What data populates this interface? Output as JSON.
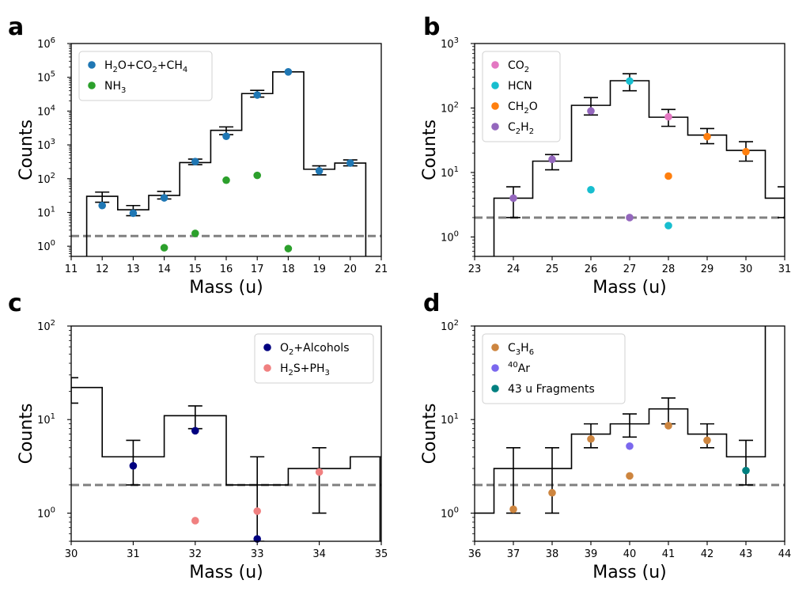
{
  "colors": {
    "step_line": "#000000",
    "threshold_line": "#808080",
    "h2o_co2_ch4": "#1f77b4",
    "nh3": "#2ca02c",
    "co2": "#e377c2",
    "hcn": "#17becf",
    "ch2o": "#ff7f0e",
    "c2h2": "#9467bd",
    "o2_alcohols": "#000080",
    "h2s_ph3": "#f08080",
    "c3h6": "#cd853f",
    "ar40": "#7b68ee",
    "fragments43": "#008080"
  },
  "chart_data": [
    {
      "panel": "a",
      "type": "line",
      "xlabel": "Mass (u)",
      "ylabel": "Counts",
      "xlim": [
        11,
        21
      ],
      "ylim": [
        0.5,
        1000000
      ],
      "yscale": "log",
      "xticks": [
        "11",
        "12",
        "13",
        "14",
        "15",
        "16",
        "17",
        "18",
        "19",
        "20",
        "21"
      ],
      "yticks": [
        {
          "value": 1,
          "base": "10",
          "exp": "0"
        },
        {
          "value": 10,
          "base": "10",
          "exp": "1"
        },
        {
          "value": 100,
          "base": "10",
          "exp": "2"
        },
        {
          "value": 1000,
          "base": "10",
          "exp": "3"
        },
        {
          "value": 10000,
          "base": "10",
          "exp": "4"
        },
        {
          "value": 100000,
          "base": "10",
          "exp": "5"
        },
        {
          "value": 1000000,
          "base": "10",
          "exp": "6"
        }
      ],
      "threshold": 2,
      "step": {
        "x": [
          12,
          13,
          14,
          15,
          16,
          17,
          18,
          19,
          20
        ],
        "y": [
          30,
          12,
          32,
          300,
          2700,
          33000,
          145000,
          190,
          290
        ],
        "left_drop": 11.5,
        "right_drop": 20.5
      },
      "errorbars": [
        {
          "x": 12,
          "lo": 20,
          "hi": 40
        },
        {
          "x": 13,
          "lo": 8,
          "hi": 16
        },
        {
          "x": 14,
          "lo": 25,
          "hi": 42
        },
        {
          "x": 15,
          "lo": 260,
          "hi": 380
        },
        {
          "x": 16,
          "lo": 2000,
          "hi": 3400
        },
        {
          "x": 17,
          "lo": 26000,
          "hi": 41000
        },
        {
          "x": 19,
          "lo": 130,
          "hi": 240
        },
        {
          "x": 20,
          "lo": 240,
          "hi": 360
        }
      ],
      "series": [
        {
          "key": "h2o_co2_ch4",
          "points": [
            {
              "x": 12,
              "y": 16
            },
            {
              "x": 13,
              "y": 9.5
            },
            {
              "x": 14,
              "y": 27
            },
            {
              "x": 15,
              "y": 320
            },
            {
              "x": 16,
              "y": 1800
            },
            {
              "x": 17,
              "y": 30000
            },
            {
              "x": 18,
              "y": 145000
            },
            {
              "x": 19,
              "y": 170
            },
            {
              "x": 20,
              "y": 290
            }
          ]
        },
        {
          "key": "nh3",
          "points": [
            {
              "x": 14,
              "y": 0.9
            },
            {
              "x": 15,
              "y": 2.4
            },
            {
              "x": 16,
              "y": 90
            },
            {
              "x": 17,
              "y": 125
            },
            {
              "x": 18,
              "y": 0.85
            }
          ]
        }
      ],
      "legend": {
        "position": "upper-left",
        "entries": [
          {
            "key": "h2o_co2_ch4",
            "parts": [
              [
                "H",
                ""
              ],
              [
                "2",
                "sub"
              ],
              [
                "O+CO",
                ""
              ],
              [
                "2",
                "sub"
              ],
              [
                "+CH",
                ""
              ],
              [
                "4",
                "sub"
              ]
            ]
          },
          {
            "key": "nh3",
            "parts": [
              [
                "NH",
                ""
              ],
              [
                "3",
                "sub"
              ]
            ]
          }
        ]
      }
    },
    {
      "panel": "b",
      "type": "line",
      "xlabel": "Mass (u)",
      "ylabel": "Counts",
      "xlim": [
        23,
        31
      ],
      "ylim": [
        0.5,
        1000
      ],
      "yscale": "log",
      "xticks": [
        "23",
        "24",
        "25",
        "26",
        "27",
        "28",
        "29",
        "30",
        "31"
      ],
      "yticks": [
        {
          "value": 1,
          "base": "10",
          "exp": "0"
        },
        {
          "value": 10,
          "base": "10",
          "exp": "1"
        },
        {
          "value": 100,
          "base": "10",
          "exp": "2"
        },
        {
          "value": 1000,
          "base": "10",
          "exp": "3"
        }
      ],
      "threshold": 2,
      "step": {
        "x": [
          24,
          25,
          26,
          27,
          28,
          29,
          30,
          31
        ],
        "y": [
          4,
          15,
          110,
          265,
          72,
          38,
          22,
          4
        ],
        "left_drop": 23.5,
        "right_drop": null
      },
      "errorbars": [
        {
          "x": 24,
          "lo": 2,
          "hi": 6
        },
        {
          "x": 25,
          "lo": 11,
          "hi": 19
        },
        {
          "x": 26,
          "lo": 78,
          "hi": 145
        },
        {
          "x": 27,
          "lo": 185,
          "hi": 340
        },
        {
          "x": 28,
          "lo": 52,
          "hi": 95
        },
        {
          "x": 29,
          "lo": 28,
          "hi": 48
        },
        {
          "x": 30,
          "lo": 15,
          "hi": 30
        },
        {
          "x": 31,
          "lo": 2,
          "hi": 6
        }
      ],
      "series": [
        {
          "key": "co2",
          "points": [
            {
              "x": 28,
              "y": 73
            }
          ]
        },
        {
          "key": "hcn",
          "points": [
            {
              "x": 26,
              "y": 5.4
            },
            {
              "x": 27,
              "y": 262
            },
            {
              "x": 28,
              "y": 1.5
            }
          ]
        },
        {
          "key": "ch2o",
          "points": [
            {
              "x": 28,
              "y": 8.8
            },
            {
              "x": 29,
              "y": 36
            },
            {
              "x": 30,
              "y": 21
            }
          ]
        },
        {
          "key": "c2h2",
          "points": [
            {
              "x": 24,
              "y": 4
            },
            {
              "x": 25,
              "y": 16
            },
            {
              "x": 26,
              "y": 90
            },
            {
              "x": 27,
              "y": 2
            }
          ]
        }
      ],
      "legend": {
        "position": "upper-left",
        "entries": [
          {
            "key": "co2",
            "parts": [
              [
                "CO",
                ""
              ],
              [
                "2",
                "sub"
              ]
            ]
          },
          {
            "key": "hcn",
            "parts": [
              [
                "HCN",
                ""
              ]
            ]
          },
          {
            "key": "ch2o",
            "parts": [
              [
                "CH",
                ""
              ],
              [
                "2",
                "sub"
              ],
              [
                "O",
                ""
              ]
            ]
          },
          {
            "key": "c2h2",
            "parts": [
              [
                "C",
                ""
              ],
              [
                "2",
                "sub"
              ],
              [
                "H",
                ""
              ],
              [
                "2",
                "sub"
              ]
            ]
          }
        ]
      }
    },
    {
      "panel": "c",
      "type": "line",
      "xlabel": "Mass (u)",
      "ylabel": "Counts",
      "xlim": [
        30,
        35
      ],
      "ylim": [
        0.5,
        100
      ],
      "yscale": "log",
      "xticks": [
        "30",
        "31",
        "32",
        "33",
        "34",
        "35"
      ],
      "yticks": [
        {
          "value": 1,
          "base": "10",
          "exp": "0"
        },
        {
          "value": 10,
          "base": "10",
          "exp": "1"
        },
        {
          "value": 100,
          "base": "10",
          "exp": "2"
        }
      ],
      "threshold": 2,
      "step": {
        "x": [
          30,
          31,
          32,
          33,
          34,
          35
        ],
        "y": [
          22,
          4,
          11,
          2,
          3,
          4
        ],
        "left_drop": null,
        "right_drop": 34.98
      },
      "errorbars": [
        {
          "x": 30,
          "lo": 15,
          "hi": 28
        },
        {
          "x": 31,
          "lo": 2,
          "hi": 6
        },
        {
          "x": 32,
          "lo": 8,
          "hi": 14
        },
        {
          "x": 33,
          "lo": 0.5,
          "hi": 4
        },
        {
          "x": 34,
          "lo": 1,
          "hi": 5
        }
      ],
      "series": [
        {
          "key": "o2_alcohols",
          "points": [
            {
              "x": 31,
              "y": 3.2
            },
            {
              "x": 32,
              "y": 7.6
            },
            {
              "x": 33,
              "y": 0.53
            }
          ]
        },
        {
          "key": "h2s_ph3",
          "points": [
            {
              "x": 32,
              "y": 0.83
            },
            {
              "x": 33,
              "y": 1.05
            },
            {
              "x": 34,
              "y": 2.75
            }
          ]
        }
      ],
      "legend": {
        "position": "upper-right",
        "entries": [
          {
            "key": "o2_alcohols",
            "parts": [
              [
                "O",
                ""
              ],
              [
                "2",
                "sub"
              ],
              [
                "+Alcohols",
                ""
              ]
            ]
          },
          {
            "key": "h2s_ph3",
            "parts": [
              [
                "H",
                ""
              ],
              [
                "2",
                "sub"
              ],
              [
                "S+PH",
                ""
              ],
              [
                "3",
                "sub"
              ]
            ]
          }
        ]
      }
    },
    {
      "panel": "d",
      "type": "line",
      "xlabel": "Mass (u)",
      "ylabel": "Counts",
      "xlim": [
        36,
        44
      ],
      "ylim": [
        0.5,
        100
      ],
      "yscale": "log",
      "xticks": [
        "36",
        "37",
        "38",
        "39",
        "40",
        "41",
        "42",
        "43",
        "44"
      ],
      "yticks": [
        {
          "value": 1,
          "base": "10",
          "exp": "0"
        },
        {
          "value": 10,
          "base": "10",
          "exp": "1"
        },
        {
          "value": 100,
          "base": "10",
          "exp": "2"
        }
      ],
      "threshold": 2,
      "step": {
        "x": [
          36,
          37,
          38,
          39,
          40,
          41,
          42,
          43
        ],
        "y": [
          1,
          3,
          3,
          7,
          9,
          13,
          7,
          4
        ],
        "left_drop": null,
        "right_drop": null,
        "right_rise": 43.5
      },
      "errorbars": [
        {
          "x": 37,
          "lo": 1,
          "hi": 5
        },
        {
          "x": 38,
          "lo": 1,
          "hi": 5
        },
        {
          "x": 39,
          "lo": 5,
          "hi": 9
        },
        {
          "x": 40,
          "lo": 6.5,
          "hi": 11.5
        },
        {
          "x": 41,
          "lo": 9,
          "hi": 17
        },
        {
          "x": 42,
          "lo": 5,
          "hi": 9
        },
        {
          "x": 43,
          "lo": 2,
          "hi": 6
        }
      ],
      "series": [
        {
          "key": "c3h6",
          "points": [
            {
              "x": 37,
              "y": 1.1
            },
            {
              "x": 38,
              "y": 1.65
            },
            {
              "x": 39,
              "y": 6.2
            },
            {
              "x": 40,
              "y": 2.5
            },
            {
              "x": 41,
              "y": 8.6
            },
            {
              "x": 42,
              "y": 6
            }
          ]
        },
        {
          "key": "ar40",
          "points": [
            {
              "x": 40,
              "y": 5.2
            }
          ]
        },
        {
          "key": "fragments43",
          "points": [
            {
              "x": 43,
              "y": 2.85
            }
          ]
        }
      ],
      "legend": {
        "position": "upper-left",
        "entries": [
          {
            "key": "c3h6",
            "parts": [
              [
                "C",
                ""
              ],
              [
                "3",
                "sub"
              ],
              [
                "H",
                ""
              ],
              [
                "6",
                "sub"
              ]
            ]
          },
          {
            "key": "ar40",
            "parts": [
              [
                "40",
                "sup"
              ],
              [
                "Ar",
                ""
              ]
            ]
          },
          {
            "key": "fragments43",
            "parts": [
              [
                "43 u Fragments",
                ""
              ]
            ]
          }
        ]
      }
    }
  ]
}
